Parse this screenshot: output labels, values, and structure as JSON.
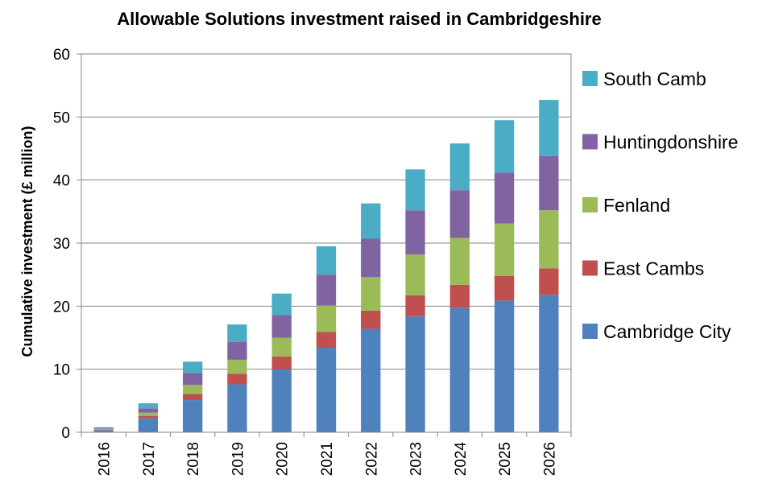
{
  "chart_data": {
    "type": "bar",
    "stacked": true,
    "title": "Allowable Solutions investment raised in Cambridgeshire",
    "ylabel": "Cumulative investment (£ million)",
    "xlabel": "",
    "ylim": [
      0,
      60
    ],
    "yticks": [
      0,
      10,
      20,
      30,
      40,
      50,
      60
    ],
    "grid": true,
    "legend_position": "right",
    "categories": [
      "2016",
      "2017",
      "2018",
      "2019",
      "2020",
      "2021",
      "2022",
      "2023",
      "2024",
      "2025",
      "2026"
    ],
    "series": [
      {
        "name": "Cambridge City",
        "color": "#4F81BD",
        "values": [
          0.3,
          2.2,
          5.1,
          7.6,
          10.0,
          13.4,
          16.4,
          18.4,
          19.7,
          20.9,
          21.8
        ]
      },
      {
        "name": "East Cambs",
        "color": "#C0504D",
        "values": [
          0.1,
          0.4,
          1.0,
          1.7,
          2.0,
          2.5,
          2.9,
          3.3,
          3.7,
          3.9,
          4.2
        ]
      },
      {
        "name": "Fenland",
        "color": "#9BBB59",
        "values": [
          0.1,
          0.5,
          1.4,
          2.2,
          3.0,
          4.2,
          5.3,
          6.5,
          7.4,
          8.3,
          9.2
        ]
      },
      {
        "name": "Huntingdonshire",
        "color": "#8064A2",
        "values": [
          0.1,
          0.7,
          1.9,
          2.8,
          3.6,
          4.9,
          6.1,
          7.0,
          7.6,
          8.1,
          8.6
        ]
      },
      {
        "name": "South Camb",
        "color": "#4BACC6",
        "values": [
          0.2,
          0.8,
          1.8,
          2.8,
          3.4,
          4.5,
          5.6,
          6.5,
          7.4,
          8.3,
          8.9
        ]
      }
    ]
  }
}
